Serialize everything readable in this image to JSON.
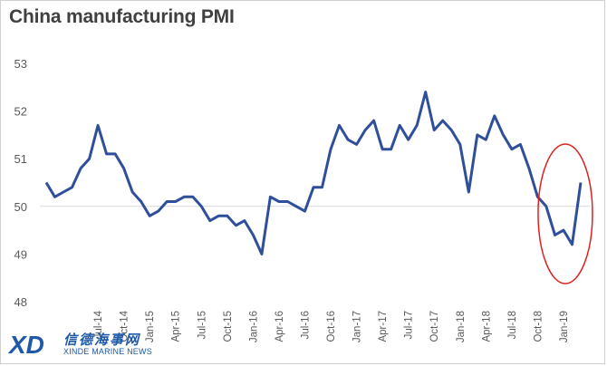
{
  "chart_data": {
    "type": "line",
    "title": "China manufacturing PMI",
    "ylim": [
      48,
      53
    ],
    "yticks": [
      48,
      49,
      50,
      51,
      52,
      53
    ],
    "grid": "reference line at 50",
    "line_color": "#2f4f9a",
    "annotation_color": "#e02020",
    "x_tick_labels": [
      "Jul-14",
      "Oct-14",
      "Jan-15",
      "Apr-15",
      "Jul-15",
      "Oct-15",
      "Jan-16",
      "Apr-16",
      "Jul-16",
      "Oct-16",
      "Jan-17",
      "Apr-17",
      "Jul-17",
      "Oct-17",
      "Jan-18",
      "Apr-18",
      "Jul-18",
      "Oct-18",
      "Jan-19"
    ],
    "x": [
      "Jan-14",
      "Feb-14",
      "Mar-14",
      "Apr-14",
      "May-14",
      "Jun-14",
      "Jul-14",
      "Aug-14",
      "Sep-14",
      "Oct-14",
      "Nov-14",
      "Dec-14",
      "Jan-15",
      "Feb-15",
      "Mar-15",
      "Apr-15",
      "May-15",
      "Jun-15",
      "Jul-15",
      "Aug-15",
      "Sep-15",
      "Oct-15",
      "Nov-15",
      "Dec-15",
      "Jan-16",
      "Feb-16",
      "Mar-16",
      "Apr-16",
      "May-16",
      "Jun-16",
      "Jul-16",
      "Aug-16",
      "Sep-16",
      "Oct-16",
      "Nov-16",
      "Dec-16",
      "Jan-17",
      "Feb-17",
      "Mar-17",
      "Apr-17",
      "May-17",
      "Jun-17",
      "Jul-17",
      "Aug-17",
      "Sep-17",
      "Oct-17",
      "Nov-17",
      "Dec-17",
      "Jan-18",
      "Feb-18",
      "Mar-18",
      "Apr-18",
      "May-18",
      "Jun-18",
      "Jul-18",
      "Aug-18",
      "Sep-18",
      "Oct-18",
      "Nov-18",
      "Dec-18",
      "Jan-19",
      "Feb-19",
      "Mar-19"
    ],
    "series": [
      {
        "values": [
          50.5,
          50.2,
          50.3,
          50.4,
          50.8,
          51.0,
          51.7,
          51.1,
          51.1,
          50.8,
          50.3,
          50.1,
          49.8,
          49.9,
          50.1,
          50.1,
          50.2,
          50.2,
          50.0,
          49.7,
          49.8,
          49.8,
          49.6,
          49.7,
          49.4,
          49.0,
          50.2,
          50.1,
          50.1,
          50.0,
          49.9,
          50.4,
          50.4,
          51.2,
          51.7,
          51.4,
          51.3,
          51.6,
          51.8,
          51.2,
          51.2,
          51.7,
          51.4,
          51.7,
          52.4,
          51.6,
          51.8,
          51.6,
          51.3,
          50.3,
          51.5,
          51.4,
          51.9,
          51.5,
          51.2,
          51.3,
          50.8,
          50.2,
          50.0,
          49.4,
          49.5,
          49.2,
          50.5
        ]
      }
    ]
  },
  "watermark": {
    "logo_text": "XD",
    "chinese_name": "信德海事网",
    "english_name": "XINDE MARINE NEWS"
  }
}
